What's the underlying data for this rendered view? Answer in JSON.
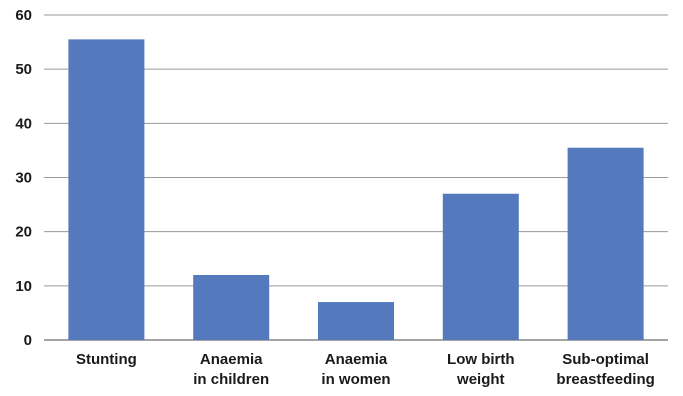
{
  "chart_data": {
    "type": "bar",
    "title": "",
    "xlabel": "",
    "ylabel": "",
    "ylim": [
      0,
      60
    ],
    "yticks": [
      0,
      10,
      20,
      30,
      40,
      50,
      60
    ],
    "grid": true,
    "bar_color": "#5579bd",
    "categories": [
      [
        "Stunting"
      ],
      [
        "Anaemia",
        "in children"
      ],
      [
        "Anaemia",
        "in women"
      ],
      [
        "Low birth",
        "weight"
      ],
      [
        "Sub-optimal",
        "breastfeeding"
      ]
    ],
    "values": [
      55.5,
      12,
      7,
      27,
      35.5
    ]
  }
}
